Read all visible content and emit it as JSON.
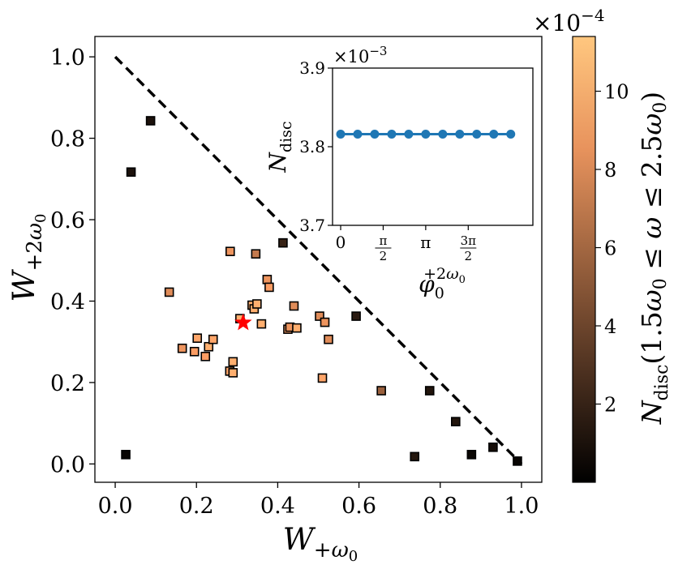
{
  "chart_data": [
    {
      "type": "scatter",
      "xlabel": "W+ω0",
      "ylabel": "W+2ω0",
      "xlim": [
        -0.05,
        1.05
      ],
      "ylim": [
        -0.045,
        1.05
      ],
      "xticks": [
        "0.0",
        "0.2",
        "0.4",
        "0.6",
        "0.8",
        "1.0"
      ],
      "yticks": [
        "0.0",
        "0.2",
        "0.4",
        "0.6",
        "0.8",
        "1.0"
      ],
      "boundary_line": {
        "style": "dashed",
        "color": "#000000",
        "x": [
          0.0,
          1.0
        ],
        "y": [
          1.0,
          0.0
        ]
      },
      "star_marker": {
        "x": 0.315,
        "y": 0.347,
        "color": "#ff0000"
      },
      "points": [
        {
          "x": 0.087,
          "y": 0.843,
          "c": 1.0
        },
        {
          "x": 0.039,
          "y": 0.717,
          "c": 1.0
        },
        {
          "x": 0.026,
          "y": 0.023,
          "c": 0.3
        },
        {
          "x": 0.413,
          "y": 0.543,
          "c": 2.0
        },
        {
          "x": 0.593,
          "y": 0.363,
          "c": 1.5
        },
        {
          "x": 0.655,
          "y": 0.18,
          "c": 5.5
        },
        {
          "x": 0.774,
          "y": 0.18,
          "c": 1.2
        },
        {
          "x": 0.737,
          "y": 0.018,
          "c": 1.3
        },
        {
          "x": 0.838,
          "y": 0.104,
          "c": 1.2
        },
        {
          "x": 0.877,
          "y": 0.023,
          "c": 0.4
        },
        {
          "x": 0.93,
          "y": 0.041,
          "c": 0.8
        },
        {
          "x": 0.99,
          "y": 0.007,
          "c": 0.3
        },
        {
          "x": 0.133,
          "y": 0.422,
          "c": 8.0
        },
        {
          "x": 0.283,
          "y": 0.522,
          "c": 8.5
        },
        {
          "x": 0.346,
          "y": 0.516,
          "c": 7.0
        },
        {
          "x": 0.374,
          "y": 0.453,
          "c": 8.5
        },
        {
          "x": 0.379,
          "y": 0.434,
          "c": 9.0
        },
        {
          "x": 0.337,
          "y": 0.39,
          "c": 10.0
        },
        {
          "x": 0.342,
          "y": 0.381,
          "c": 10.0
        },
        {
          "x": 0.349,
          "y": 0.393,
          "c": 10.0
        },
        {
          "x": 0.36,
          "y": 0.344,
          "c": 10.0
        },
        {
          "x": 0.307,
          "y": 0.357,
          "c": 10.0
        },
        {
          "x": 0.44,
          "y": 0.388,
          "c": 8.0
        },
        {
          "x": 0.425,
          "y": 0.331,
          "c": 9.0
        },
        {
          "x": 0.43,
          "y": 0.336,
          "c": 8.5
        },
        {
          "x": 0.447,
          "y": 0.334,
          "c": 10.0
        },
        {
          "x": 0.503,
          "y": 0.363,
          "c": 8.0
        },
        {
          "x": 0.516,
          "y": 0.348,
          "c": 8.5
        },
        {
          "x": 0.525,
          "y": 0.306,
          "c": 8.0
        },
        {
          "x": 0.51,
          "y": 0.211,
          "c": 9.5
        },
        {
          "x": 0.165,
          "y": 0.284,
          "c": 8.5
        },
        {
          "x": 0.195,
          "y": 0.276,
          "c": 9.0
        },
        {
          "x": 0.202,
          "y": 0.309,
          "c": 9.5
        },
        {
          "x": 0.222,
          "y": 0.264,
          "c": 9.0
        },
        {
          "x": 0.23,
          "y": 0.288,
          "c": 10.0
        },
        {
          "x": 0.241,
          "y": 0.306,
          "c": 9.5
        },
        {
          "x": 0.282,
          "y": 0.228,
          "c": 9.5
        },
        {
          "x": 0.29,
          "y": 0.224,
          "c": 10.0
        },
        {
          "x": 0.29,
          "y": 0.251,
          "c": 10.0
        }
      ]
    },
    {
      "type": "line",
      "placement": "inset top-right",
      "xlabel": "φ0+2ω0",
      "ylabel": "Ndisc",
      "xlim": [
        -0.3,
        7.1
      ],
      "ylim": [
        3.7,
        3.9
      ],
      "y_multiplier": "×10^-3",
      "xticks": [
        "0",
        "π/2",
        "π",
        "3π/2"
      ],
      "xtick_values": [
        0,
        1.5708,
        3.1416,
        4.7124
      ],
      "yticks": [
        "3.7",
        "3.8",
        "3.9"
      ],
      "color": "#1f77b4",
      "x": [
        0,
        0.6283,
        1.2566,
        1.885,
        2.5133,
        3.1416,
        3.7699,
        4.3982,
        5.0265,
        5.6549,
        6.2832
      ],
      "y": [
        3.816,
        3.816,
        3.816,
        3.816,
        3.816,
        3.816,
        3.816,
        3.816,
        3.816,
        3.816,
        3.816
      ]
    }
  ],
  "colorbar": {
    "label": "Ndisc(1.5ω0 ≤ ω ≤ 2.5ω0)",
    "multiplier": "×10^-4",
    "range": [
      0.0,
      11.4
    ],
    "ticks": [
      "2",
      "4",
      "6",
      "8",
      "10"
    ],
    "tick_values": [
      2,
      4,
      6,
      8,
      10
    ],
    "colormap": "copper"
  }
}
